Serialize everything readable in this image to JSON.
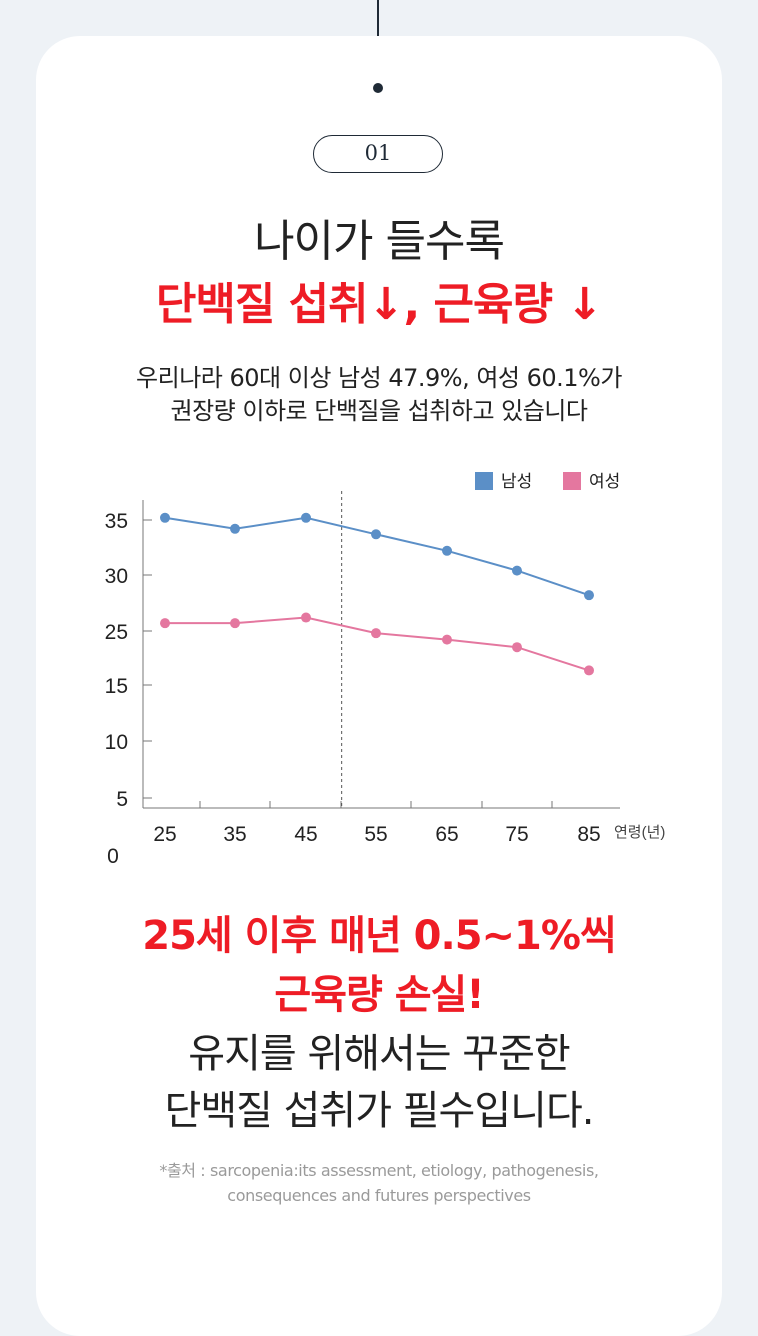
{
  "step": {
    "number": "01"
  },
  "title": {
    "line1": "나이가 들수록",
    "line2": "단백질 섭취↓, 근육량 ↓"
  },
  "description": {
    "line1": "우리나라 60대 이상 남성 47.9%, 여성 60.1%가",
    "line2": "권장량 이하로 단백질을 섭취하고 있습니다"
  },
  "chart_data": {
    "type": "line",
    "x": [
      25,
      35,
      45,
      55,
      65,
      75,
      85
    ],
    "x_tick_labels": [
      "25",
      "35",
      "45",
      "55",
      "65",
      "75",
      "85"
    ],
    "xlabel": "연령(년)",
    "y_tick_labels": [
      "0",
      "5",
      "10",
      "15",
      "25",
      "30",
      "35"
    ],
    "series": [
      {
        "name": "남성",
        "color": "#5b8fc7",
        "values": [
          35.2,
          34.2,
          35.2,
          33.7,
          32.2,
          30.4,
          28.2
        ]
      },
      {
        "name": "여성",
        "color": "#e4779f",
        "values": [
          25.7,
          25.7,
          26.2,
          24.6,
          23.4,
          22.0,
          17.7
        ]
      }
    ],
    "vertical_reference_x": 50,
    "legend_position": "top-right",
    "grid": false
  },
  "conclusion": {
    "line1": "25세 이후 매년 0.5~1%씩",
    "line2": "근육량 손실!",
    "line3": "유지를 위해서는 꾸준한",
    "line4": "단백질 섭취가 필수입니다."
  },
  "source": {
    "line1": "*출처 : sarcopenia:its assessment, etiology, pathogenesis,",
    "line2": "consequences and futures perspectives"
  },
  "colors": {
    "accent_red": "#ee1c25",
    "navy": "#1f2a36",
    "male_blue": "#5b8fc7",
    "female_pink": "#e4779f"
  }
}
